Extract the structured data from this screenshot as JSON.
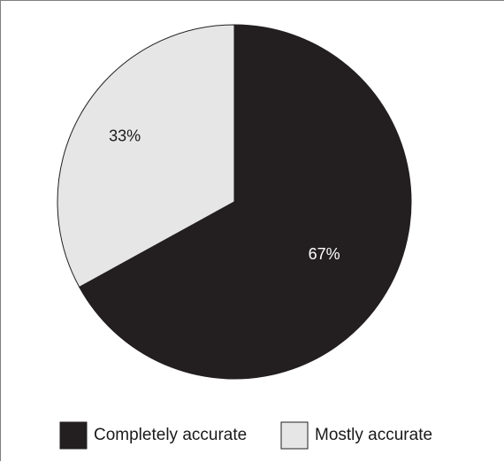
{
  "chart_data": {
    "type": "pie",
    "title": "",
    "categories": [
      "Completely accurate",
      "Mostly accurate"
    ],
    "values": [
      67,
      33
    ],
    "data_labels": [
      "67%",
      "33%"
    ],
    "colors": [
      "#231f20",
      "#e6e6e6"
    ],
    "label_colors": [
      "#ffffff",
      "#1a1a1a"
    ],
    "start_angle_deg": 0,
    "direction": "clockwise",
    "legend": {
      "position": "bottom",
      "entries": [
        "Completely accurate",
        "Mostly accurate"
      ]
    }
  }
}
